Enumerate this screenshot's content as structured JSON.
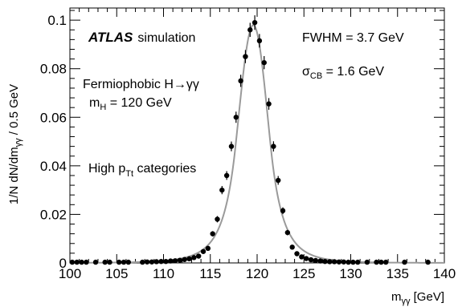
{
  "chart_data": {
    "type": "scatter",
    "title": "",
    "xlabel_main": "m",
    "xlabel_sub": "γγ",
    "xlabel_unit": " [GeV]",
    "ylabel_main": "1/N dN/dm",
    "ylabel_sub": "γγ",
    "ylabel_unit": " / 0.5 GeV",
    "xlim": [
      100,
      140
    ],
    "ylim": [
      0,
      0.105
    ],
    "x_ticks": [
      100,
      105,
      110,
      115,
      120,
      125,
      130,
      135,
      140
    ],
    "y_ticks": [
      0,
      0.02,
      0.04,
      0.06,
      0.08,
      0.1
    ],
    "x_tick_labels": [
      "100",
      "105",
      "110",
      "115",
      "120",
      "125",
      "130",
      "135",
      "140"
    ],
    "y_tick_labels": [
      "0",
      "0.02",
      "0.04",
      "0.06",
      "0.08",
      "0.1"
    ],
    "grid": false,
    "annotations": {
      "atlas": "ATLAS",
      "simulation": "simulation",
      "process": "Fermiophobic H→γγ",
      "mass_main": "m",
      "mass_sub": "H",
      "mass_rest": " = 120 GeV",
      "category_main": "High p",
      "category_sub": "Tt",
      "category_rest": " categories",
      "fwhm": "FWHM = 3.7 GeV",
      "sigma_main": "σ",
      "sigma_sub": "CB",
      "sigma_rest": " = 1.6 GeV"
    },
    "series": [
      {
        "kind": "points",
        "color": "#000000",
        "x": [
          100.25,
          100.75,
          101.25,
          101.75,
          102.75,
          103.75,
          104.25,
          105.25,
          105.75,
          106.25,
          107.75,
          108.25,
          108.75,
          109.25,
          109.75,
          110.25,
          110.75,
          111.25,
          111.75,
          112.25,
          112.75,
          113.25,
          113.75,
          114.25,
          114.75,
          115.25,
          115.75,
          116.25,
          116.75,
          117.25,
          117.75,
          118.25,
          118.75,
          119.25,
          119.75,
          120.25,
          120.75,
          121.25,
          121.75,
          122.25,
          122.75,
          123.25,
          123.75,
          124.25,
          124.75,
          125.25,
          125.75,
          126.25,
          126.75,
          127.25,
          127.75,
          128.25,
          128.75,
          129.25,
          129.75,
          130.25,
          130.75,
          131.75,
          132.75,
          133.25,
          133.75,
          135.75,
          138.25
        ],
        "y": [
          0.0003,
          0.0003,
          0.0003,
          0.0003,
          0.0003,
          0.0003,
          0.0003,
          0.0003,
          0.0003,
          0.0003,
          0.0003,
          0.0004,
          0.0004,
          0.0005,
          0.0006,
          0.0006,
          0.0008,
          0.0009,
          0.0011,
          0.0014,
          0.0017,
          0.0022,
          0.0028,
          0.0047,
          0.006,
          0.012,
          0.018,
          0.03,
          0.036,
          0.048,
          0.06,
          0.075,
          0.085,
          0.096,
          0.099,
          0.0915,
          0.0825,
          0.0655,
          0.048,
          0.034,
          0.0215,
          0.0125,
          0.0065,
          0.0038,
          0.0025,
          0.0018,
          0.0013,
          0.001,
          0.0008,
          0.0006,
          0.0005,
          0.0005,
          0.0004,
          0.0004,
          0.0003,
          0.0003,
          0.0003,
          0.0003,
          0.0003,
          0.0003,
          0.0003,
          0.0003,
          0.0003
        ],
        "yerr": [
          0.0003,
          0.0003,
          0.0003,
          0.0003,
          0.0003,
          0.0003,
          0.0003,
          0.0003,
          0.0003,
          0.0003,
          0.0003,
          0.0003,
          0.0003,
          0.0003,
          0.0003,
          0.0003,
          0.0004,
          0.0004,
          0.0004,
          0.0005,
          0.0005,
          0.0005,
          0.0006,
          0.0007,
          0.0008,
          0.0011,
          0.0013,
          0.0017,
          0.0018,
          0.002,
          0.0023,
          0.0025,
          0.0027,
          0.0029,
          0.003,
          0.0028,
          0.0027,
          0.0024,
          0.0021,
          0.0018,
          0.0014,
          0.0011,
          0.0008,
          0.0006,
          0.0005,
          0.0004,
          0.0004,
          0.0004,
          0.0003,
          0.0003,
          0.0003,
          0.0003,
          0.0003,
          0.0003,
          0.0003,
          0.0003,
          0.0003,
          0.0003,
          0.0003,
          0.0003,
          0.0003,
          0.0003,
          0.0003
        ]
      },
      {
        "kind": "fit-curve",
        "color": "#9a9a9a",
        "peak_x": 119.6,
        "peak_y": 0.098,
        "sigma_left": 1.6,
        "sigma_right": 1.55,
        "tail_alpha": 1.2,
        "tail_n": 6
      }
    ]
  }
}
